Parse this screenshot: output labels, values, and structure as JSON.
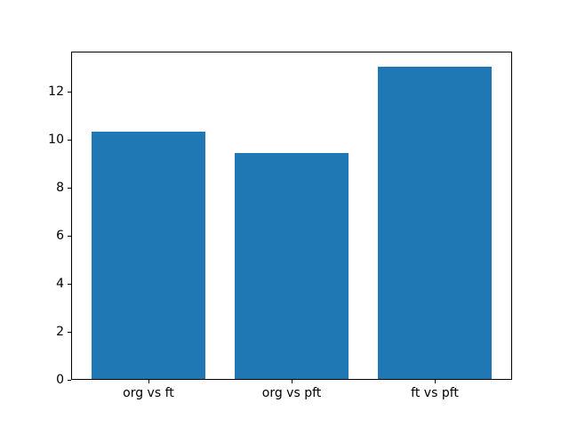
{
  "figure": {
    "background": "#ffffff"
  },
  "chart_data": {
    "type": "bar",
    "categories": [
      "org vs ft",
      "org vs pft",
      "ft vs pft"
    ],
    "values": [
      10.3,
      9.4,
      13.0
    ],
    "title": "",
    "xlabel": "",
    "ylabel": "",
    "ylim": [
      0,
      13.65
    ],
    "yticks": [
      0,
      2,
      4,
      6,
      8,
      10,
      12
    ],
    "bar_width_data_units": 0.8,
    "xlim": [
      -0.54,
      2.54
    ],
    "bar_color": "#1f77b4",
    "axis_color": "#000000",
    "text_color": "#000000",
    "grid": false,
    "legend": false
  }
}
